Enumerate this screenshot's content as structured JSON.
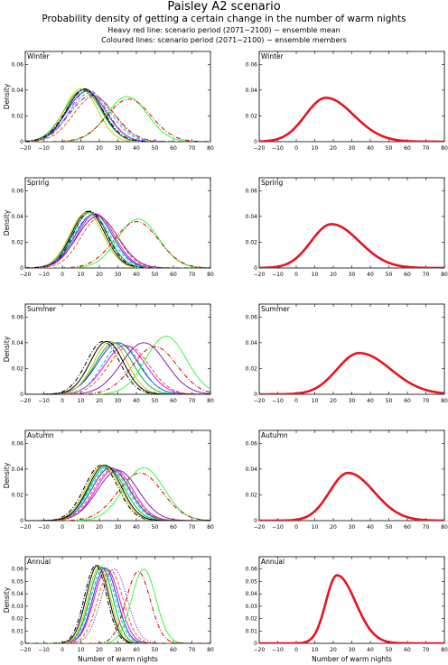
{
  "title": "Paisley A2 scenario",
  "subtitle": "Probability density of getting a certain change in the number of warm nights",
  "note_heavy": "Heavy red line: scenario period (2071−2100) − ensemble mean",
  "note_coloured": "Coloured lines: scenario period (2071−2100) − ensemble members",
  "colors": {
    "mean": "#e8141e",
    "members": [
      "#000000",
      "#00b050",
      "#1f3fbf",
      "#ff00ff",
      "#00c8c8",
      "#cccc00",
      "#7f1fbf",
      "#d2691e",
      "#ff0000",
      "#33ff33",
      "#e00000",
      "#000000"
    ]
  },
  "chart_data": [
    {
      "type": "line",
      "panel": "left",
      "label": "Winter",
      "xlabel": "",
      "ylabel": "Density",
      "xlim": [
        -20,
        80
      ],
      "ylim": [
        0,
        0.07
      ],
      "xticks": [
        -20,
        -10,
        0,
        10,
        20,
        30,
        40,
        50,
        60,
        70,
        80
      ],
      "yticks": [
        0,
        0.02,
        0.04,
        0.06
      ],
      "ytick_labels": [
        "0",
        "0.02",
        "0.04",
        "0.06"
      ],
      "series": [
        {
          "peak": 12,
          "spread": 9.5,
          "height": 0.041,
          "color": "#000000",
          "dash": "solid"
        },
        {
          "peak": 11,
          "spread": 10,
          "height": 0.04,
          "color": "#00b050",
          "dash": "solid"
        },
        {
          "peak": 13,
          "spread": 10.5,
          "height": 0.039,
          "color": "#1f3fbf",
          "dash": "solid"
        },
        {
          "peak": 14,
          "spread": 10,
          "height": 0.04,
          "color": "#ff00ff",
          "dash": "dashdot"
        },
        {
          "peak": 15,
          "spread": 11,
          "height": 0.038,
          "color": "#00c8c8",
          "dash": "dashed"
        },
        {
          "peak": 10,
          "spread": 9,
          "height": 0.041,
          "color": "#cccc00",
          "dash": "solid"
        },
        {
          "peak": 16,
          "spread": 12,
          "height": 0.036,
          "color": "#7f1fbf",
          "dash": "dashdot"
        },
        {
          "peak": 17,
          "spread": 11,
          "height": 0.035,
          "color": "#d2691e",
          "dash": "dashed"
        },
        {
          "peak": 35,
          "spread": 11,
          "height": 0.035,
          "color": "#33ff33",
          "dash": "solid"
        },
        {
          "peak": 36,
          "spread": 12,
          "height": 0.033,
          "color": "#e00000",
          "dash": "dashdot"
        },
        {
          "peak": 12,
          "spread": 10,
          "height": 0.04,
          "color": "#000000",
          "dash": "dashdot"
        }
      ]
    },
    {
      "type": "line",
      "panel": "right",
      "label": "Winter",
      "xlabel": "",
      "ylabel": "",
      "xlim": [
        -20,
        80
      ],
      "ylim": [
        0,
        0.07
      ],
      "xticks": [
        -20,
        -10,
        0,
        10,
        20,
        30,
        40,
        50,
        60,
        70,
        80
      ],
      "yticks": [
        0,
        0.02,
        0.04,
        0.06
      ],
      "ytick_labels": [
        "0",
        "0.02",
        "0.04",
        "0.06"
      ],
      "series": [
        {
          "peak": 16,
          "spread_left": 11,
          "spread_right": 15,
          "height": 0.034,
          "color": "#e8141e",
          "dash": "solid",
          "heavy": true
        }
      ]
    },
    {
      "type": "line",
      "panel": "left",
      "label": "Spring",
      "xlabel": "",
      "ylabel": "Density",
      "xlim": [
        -20,
        80
      ],
      "ylim": [
        0,
        0.07
      ],
      "xticks": [
        -20,
        -10,
        0,
        10,
        20,
        30,
        40,
        50,
        60,
        70,
        80
      ],
      "yticks": [
        0,
        0.02,
        0.04,
        0.06
      ],
      "ytick_labels": [
        "0",
        "0.02",
        "0.04",
        "0.06"
      ],
      "series": [
        {
          "peak": 14,
          "spread": 9,
          "height": 0.044,
          "color": "#000000",
          "dash": "solid"
        },
        {
          "peak": 15,
          "spread": 9.5,
          "height": 0.043,
          "color": "#00b050",
          "dash": "solid"
        },
        {
          "peak": 17,
          "spread": 10,
          "height": 0.042,
          "color": "#1f3fbf",
          "dash": "solid"
        },
        {
          "peak": 18,
          "spread": 10,
          "height": 0.042,
          "color": "#ff00ff",
          "dash": "solid"
        },
        {
          "peak": 16,
          "spread": 10,
          "height": 0.041,
          "color": "#00c8c8",
          "dash": "dashed"
        },
        {
          "peak": 13,
          "spread": 9,
          "height": 0.043,
          "color": "#cccc00",
          "dash": "solid"
        },
        {
          "peak": 19,
          "spread": 11,
          "height": 0.04,
          "color": "#7f1fbf",
          "dash": "solid"
        },
        {
          "peak": 20,
          "spread": 10,
          "height": 0.039,
          "color": "#d2691e",
          "dash": "dashed"
        },
        {
          "peak": 41,
          "spread": 11,
          "height": 0.038,
          "color": "#33ff33",
          "dash": "solid"
        },
        {
          "peak": 40,
          "spread": 12,
          "height": 0.036,
          "color": "#e00000",
          "dash": "dashdot"
        },
        {
          "peak": 15,
          "spread": 9,
          "height": 0.044,
          "color": "#000000",
          "dash": "dashdot"
        }
      ]
    },
    {
      "type": "line",
      "panel": "right",
      "label": "Spring",
      "xlabel": "",
      "ylabel": "",
      "xlim": [
        -20,
        80
      ],
      "ylim": [
        0,
        0.07
      ],
      "xticks": [
        -20,
        -10,
        0,
        10,
        20,
        30,
        40,
        50,
        60,
        70,
        80
      ],
      "yticks": [
        0,
        0.02,
        0.04,
        0.06
      ],
      "ytick_labels": [
        "0",
        "0.02",
        "0.04",
        "0.06"
      ],
      "series": [
        {
          "peak": 19,
          "spread_left": 11,
          "spread_right": 15,
          "height": 0.034,
          "color": "#e8141e",
          "dash": "solid",
          "heavy": true
        }
      ]
    },
    {
      "type": "line",
      "panel": "left",
      "label": "Summer",
      "xlabel": "",
      "ylabel": "Density",
      "xlim": [
        -20,
        80
      ],
      "ylim": [
        0,
        0.07
      ],
      "xticks": [
        -20,
        -10,
        0,
        10,
        20,
        30,
        40,
        50,
        60,
        70,
        80
      ],
      "yticks": [
        0,
        0.02,
        0.04,
        0.06
      ],
      "ytick_labels": [
        "0",
        "0.02",
        "0.04",
        "0.06"
      ],
      "series": [
        {
          "peak": 22,
          "spread": 9,
          "height": 0.041,
          "color": "#000000",
          "dash": "dashdot"
        },
        {
          "peak": 28,
          "spread": 10,
          "height": 0.04,
          "color": "#00b050",
          "dash": "solid"
        },
        {
          "peak": 30,
          "spread": 11,
          "height": 0.04,
          "color": "#1f3fbf",
          "dash": "solid"
        },
        {
          "peak": 34,
          "spread": 11,
          "height": 0.038,
          "color": "#ff00ff",
          "dash": "solid"
        },
        {
          "peak": 32,
          "spread": 10,
          "height": 0.039,
          "color": "#00c8c8",
          "dash": "dashed"
        },
        {
          "peak": 26,
          "spread": 9,
          "height": 0.041,
          "color": "#cccc00",
          "dash": "solid"
        },
        {
          "peak": 44,
          "spread": 12,
          "height": 0.04,
          "color": "#7f1fbf",
          "dash": "solid"
        },
        {
          "peak": 36,
          "spread": 11,
          "height": 0.037,
          "color": "#d2691e",
          "dash": "dashed"
        },
        {
          "peak": 56,
          "spread": 11,
          "height": 0.045,
          "color": "#33ff33",
          "dash": "solid"
        },
        {
          "peak": 50,
          "spread": 12,
          "height": 0.037,
          "color": "#e00000",
          "dash": "dashdot"
        },
        {
          "peak": 24,
          "spread": 9,
          "height": 0.041,
          "color": "#000000",
          "dash": "solid"
        }
      ]
    },
    {
      "type": "line",
      "panel": "right",
      "label": "Summer",
      "xlabel": "",
      "ylabel": "",
      "xlim": [
        -20,
        80
      ],
      "ylim": [
        0,
        0.07
      ],
      "xticks": [
        -20,
        -10,
        0,
        10,
        20,
        30,
        40,
        50,
        60,
        70,
        80
      ],
      "yticks": [
        0,
        0.02,
        0.04,
        0.06
      ],
      "ytick_labels": [
        "0",
        "0.02",
        "0.04",
        "0.06"
      ],
      "series": [
        {
          "peak": 34,
          "spread_left": 12,
          "spread_right": 17,
          "height": 0.032,
          "color": "#e8141e",
          "dash": "solid",
          "heavy": true
        }
      ]
    },
    {
      "type": "line",
      "panel": "left",
      "label": "Autumn",
      "xlabel": "",
      "ylabel": "Density",
      "xlim": [
        -20,
        80
      ],
      "ylim": [
        0,
        0.07
      ],
      "xticks": [
        -20,
        -10,
        0,
        10,
        20,
        30,
        40,
        50,
        60,
        70,
        80
      ],
      "yticks": [
        0,
        0.02,
        0.04,
        0.06
      ],
      "ytick_labels": [
        "0",
        "0.02",
        "0.04",
        "0.06"
      ],
      "series": [
        {
          "peak": 21,
          "spread": 9,
          "height": 0.043,
          "color": "#000000",
          "dash": "dashdot"
        },
        {
          "peak": 24,
          "spread": 9.5,
          "height": 0.042,
          "color": "#00b050",
          "dash": "solid"
        },
        {
          "peak": 26,
          "spread": 10,
          "height": 0.041,
          "color": "#1f3fbf",
          "dash": "solid"
        },
        {
          "peak": 28,
          "spread": 10,
          "height": 0.04,
          "color": "#ff00ff",
          "dash": "solid"
        },
        {
          "peak": 25,
          "spread": 10,
          "height": 0.041,
          "color": "#00c8c8",
          "dash": "dashed"
        },
        {
          "peak": 22,
          "spread": 9,
          "height": 0.043,
          "color": "#cccc00",
          "dash": "solid"
        },
        {
          "peak": 30,
          "spread": 11,
          "height": 0.039,
          "color": "#7f1fbf",
          "dash": "solid"
        },
        {
          "peak": 27,
          "spread": 10,
          "height": 0.04,
          "color": "#d2691e",
          "dash": "dashed"
        },
        {
          "peak": 44,
          "spread": 11,
          "height": 0.041,
          "color": "#33ff33",
          "dash": "solid"
        },
        {
          "peak": 42,
          "spread": 12,
          "height": 0.037,
          "color": "#e00000",
          "dash": "dashdot"
        },
        {
          "peak": 23,
          "spread": 9,
          "height": 0.043,
          "color": "#000000",
          "dash": "solid"
        }
      ]
    },
    {
      "type": "line",
      "panel": "right",
      "label": "Autumn",
      "xlabel": "",
      "ylabel": "",
      "xlim": [
        -20,
        80
      ],
      "ylim": [
        0,
        0.07
      ],
      "xticks": [
        -20,
        -10,
        0,
        10,
        20,
        30,
        40,
        50,
        60,
        70,
        80
      ],
      "yticks": [
        0,
        0.02,
        0.04,
        0.06
      ],
      "ytick_labels": [
        "0",
        "0.02",
        "0.04",
        "0.06"
      ],
      "series": [
        {
          "peak": 28,
          "spread_left": 10,
          "spread_right": 14,
          "height": 0.037,
          "color": "#e8141e",
          "dash": "solid",
          "heavy": true
        }
      ]
    },
    {
      "type": "line",
      "panel": "left",
      "label": "Annual",
      "xlabel": "Number of warm nights",
      "ylabel": "Density",
      "xlim": [
        -20,
        80
      ],
      "ylim": [
        0,
        0.07
      ],
      "xticks": [
        -20,
        -10,
        0,
        10,
        20,
        30,
        40,
        50,
        60,
        70,
        80
      ],
      "yticks": [
        0,
        0.01,
        0.02,
        0.03,
        0.04,
        0.05,
        0.06
      ],
      "ytick_labels": [
        "0",
        "0.01",
        "0.02",
        "0.03",
        "0.04",
        "0.05",
        "0.06"
      ],
      "series": [
        {
          "peak": 19,
          "spread": 6,
          "height": 0.063,
          "color": "#000000",
          "dash": "solid"
        },
        {
          "peak": 21,
          "spread": 6.2,
          "height": 0.062,
          "color": "#00b050",
          "dash": "solid"
        },
        {
          "peak": 23,
          "spread": 6.5,
          "height": 0.061,
          "color": "#1f3fbf",
          "dash": "solid"
        },
        {
          "peak": 24,
          "spread": 6.8,
          "height": 0.06,
          "color": "#ff00ff",
          "dash": "solid"
        },
        {
          "peak": 22,
          "spread": 6.5,
          "height": 0.061,
          "color": "#00c8c8",
          "dash": "dashed"
        },
        {
          "peak": 20,
          "spread": 6,
          "height": 0.062,
          "color": "#cccc00",
          "dash": "solid"
        },
        {
          "peak": 28,
          "spread": 7,
          "height": 0.06,
          "color": "#7f1fbf",
          "dash": "dotted"
        },
        {
          "peak": 26,
          "spread": 6.8,
          "height": 0.059,
          "color": "#d2691e",
          "dash": "dashed"
        },
        {
          "peak": 44,
          "spread": 6.5,
          "height": 0.06,
          "color": "#33ff33",
          "dash": "solid"
        },
        {
          "peak": 41,
          "spread": 6.5,
          "height": 0.058,
          "color": "#e00000",
          "dash": "dashdot"
        },
        {
          "peak": 18,
          "spread": 6,
          "height": 0.063,
          "color": "#000000",
          "dash": "dashdot"
        }
      ]
    },
    {
      "type": "line",
      "panel": "right",
      "label": "Annual",
      "xlabel": "Number of warm nights",
      "ylabel": "",
      "xlim": [
        -20,
        80
      ],
      "ylim": [
        0,
        0.07
      ],
      "xticks": [
        -20,
        -10,
        0,
        10,
        20,
        30,
        40,
        50,
        60,
        70,
        80
      ],
      "yticks": [
        0,
        0.01,
        0.02,
        0.03,
        0.04,
        0.05,
        0.06
      ],
      "ytick_labels": [
        "0",
        "0.01",
        "0.02",
        "0.03",
        "0.04",
        "0.05",
        "0.06"
      ],
      "series": [
        {
          "peak": 22,
          "spread_left": 6,
          "spread_right": 10,
          "height": 0.055,
          "color": "#e8141e",
          "dash": "solid",
          "heavy": true
        }
      ]
    }
  ]
}
